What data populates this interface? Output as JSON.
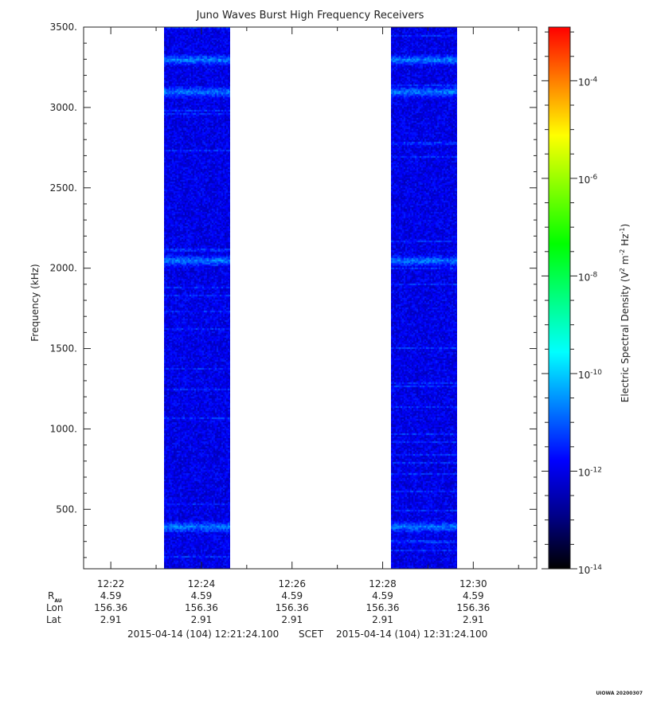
{
  "chart_data": {
    "type": "heatmap",
    "title": "Juno Waves Burst High Frequency Receivers",
    "ylabel": "Frequency (kHz)",
    "ylim": [
      130,
      3500
    ],
    "yticks": [
      500,
      1000,
      1500,
      2000,
      2500,
      3000,
      3500
    ],
    "ytick_labels": [
      "500.",
      "1000.",
      "1500.",
      "2000.",
      "2500.",
      "3000.",
      "3500."
    ],
    "xlim": [
      "12:21:24",
      "12:31:24"
    ],
    "xticks": [
      "12:22",
      "12:24",
      "12:26",
      "12:28",
      "12:30"
    ],
    "data_blocks": [
      {
        "start": "12:23:10",
        "end": "12:24:38"
      },
      {
        "start": "12:28:11",
        "end": "12:29:39"
      }
    ],
    "bright_bands_khz": [
      395,
      2050,
      3100,
      3300
    ],
    "colorbar": {
      "label_prefix": "Electric Spectral Density (V",
      "label_sup1": "2",
      "label_mid": " m",
      "label_sup2": "-2",
      "label_mid2": " Hz",
      "label_sup3": "-1",
      "label_suffix": ")",
      "scale": "log",
      "min_exp": -14,
      "max_exp": -2.9,
      "tick_exps": [
        "-14",
        "-12",
        "-10",
        "-8",
        "-6",
        "-4"
      ],
      "tick_base": "10",
      "colors": [
        "#000000",
        "#00008b",
        "#0000ff",
        "#0080ff",
        "#00ffff",
        "#00ff80",
        "#00ff00",
        "#80ff00",
        "#ffff00",
        "#ff8000",
        "#ff0000"
      ],
      "background_level_exp": -12
    },
    "grid": false
  },
  "ephemeris": {
    "labels": {
      "r_main": "R",
      "r_sub": "AU",
      "lon": "Lon",
      "lat": "Lat"
    },
    "columns": [
      {
        "r": "4.59",
        "lon": "156.36",
        "lat": "2.91"
      },
      {
        "r": "4.59",
        "lon": "156.36",
        "lat": "2.91"
      },
      {
        "r": "4.59",
        "lon": "156.36",
        "lat": "2.91"
      },
      {
        "r": "4.59",
        "lon": "156.36",
        "lat": "2.91"
      },
      {
        "r": "4.59",
        "lon": "156.36",
        "lat": "2.91"
      }
    ]
  },
  "time_range": {
    "start": "2015-04-14 (104) 12:21:24.100",
    "scet": "SCET",
    "end": "2015-04-14 (104) 12:31:24.100"
  },
  "footer": "UIOWA 20200307"
}
